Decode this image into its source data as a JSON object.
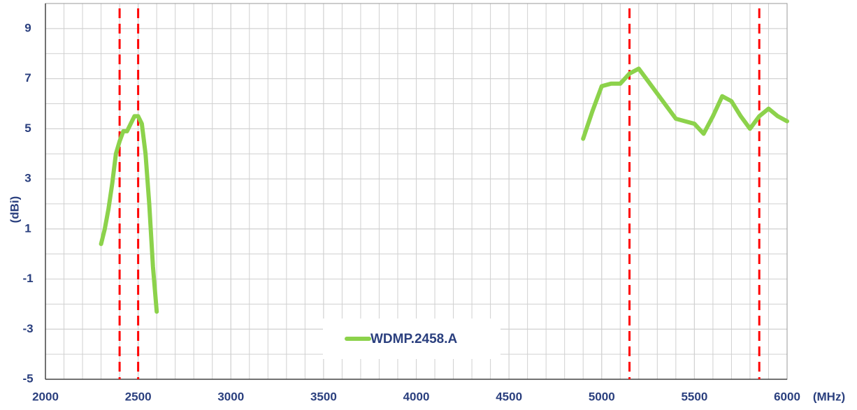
{
  "chart_data": {
    "type": "line",
    "xlabel": "(MHz)",
    "ylabel": "(dBi)",
    "xlim": [
      2000,
      6000
    ],
    "xticks": [
      2000,
      2500,
      3000,
      3500,
      4000,
      4500,
      5000,
      5500,
      6000
    ],
    "ylim": [
      -5,
      10
    ],
    "yticks": [
      -5,
      -3,
      -1,
      1,
      3,
      5,
      7,
      9
    ],
    "grid": true,
    "reference_lines": {
      "color": "#ff0000",
      "x": [
        2400,
        2500,
        5150,
        5850
      ]
    },
    "x": [
      2300,
      2320,
      2340,
      2360,
      2380,
      2400,
      2420,
      2440,
      2460,
      2480,
      2500,
      2520,
      2540,
      2560,
      2580,
      2600,
      2700,
      4900,
      4950,
      5000,
      5050,
      5100,
      5150,
      5200,
      5250,
      5300,
      5350,
      5400,
      5450,
      5500,
      5550,
      5600,
      5650,
      5700,
      5750,
      5800,
      5850,
      5900,
      5950,
      6000
    ],
    "series": [
      {
        "name": "WDMP.2458.A",
        "color": "#8cd24b",
        "values": [
          0.4,
          1.0,
          1.8,
          2.8,
          4.0,
          4.5,
          4.9,
          4.9,
          5.2,
          5.5,
          5.5,
          5.2,
          4.0,
          2.0,
          -0.5,
          -2.3,
          null,
          4.6,
          5.7,
          6.7,
          6.8,
          6.8,
          7.2,
          7.4,
          6.9,
          6.4,
          5.9,
          5.4,
          5.3,
          5.2,
          4.8,
          5.5,
          6.3,
          6.1,
          5.5,
          5.0,
          5.5,
          5.8,
          5.5,
          5.3
        ]
      }
    ],
    "legend": "bottom"
  }
}
